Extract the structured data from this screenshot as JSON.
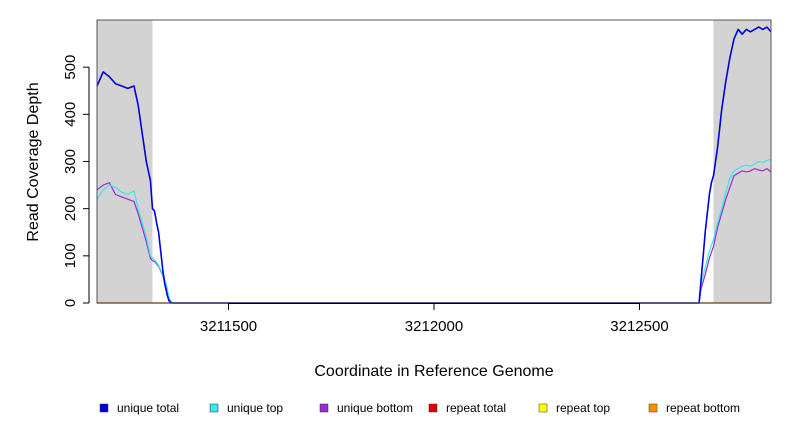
{
  "chart_data": {
    "type": "line",
    "title": "",
    "xlabel": "Coordinate in Reference Genome",
    "ylabel": "Read Coverage Depth",
    "xlim": [
      3211180,
      3212820
    ],
    "ylim": [
      0,
      600
    ],
    "x_ticks": [
      3211500,
      3212000,
      3212500
    ],
    "y_ticks": [
      0,
      100,
      200,
      300,
      400,
      500
    ],
    "shaded_regions": [
      [
        3211180,
        3211315
      ],
      [
        3212680,
        3212820
      ]
    ],
    "grid": false,
    "legend_position": "bottom",
    "series": [
      {
        "name": "unique total",
        "color": "#0000dd",
        "x": [
          3211180,
          3211195,
          3211210,
          3211225,
          3211240,
          3211255,
          3211270,
          3211280,
          3211290,
          3211300,
          3211310,
          3211315,
          3211320,
          3211325,
          3211330,
          3211335,
          3211340,
          3211345,
          3211350,
          3211355,
          3211360,
          3211365,
          3212645,
          3212650,
          3212655,
          3212660,
          3212665,
          3212670,
          3212675,
          3212680,
          3212690,
          3212700,
          3212710,
          3212720,
          3212730,
          3212740,
          3212750,
          3212760,
          3212770,
          3212780,
          3212790,
          3212800,
          3212810,
          3212820
        ],
        "y": [
          460,
          490,
          480,
          465,
          460,
          455,
          460,
          420,
          360,
          300,
          260,
          200,
          195,
          170,
          150,
          110,
          70,
          40,
          20,
          5,
          0,
          0,
          0,
          50,
          100,
          150,
          190,
          230,
          255,
          270,
          330,
          410,
          470,
          520,
          560,
          580,
          570,
          580,
          575,
          580,
          585,
          580,
          585,
          575
        ]
      },
      {
        "name": "unique top",
        "color": "#33e8e8",
        "x": [
          3211180,
          3211195,
          3211210,
          3211225,
          3211240,
          3211255,
          3211270,
          3211280,
          3211290,
          3211300,
          3211310,
          3211315,
          3211320,
          3211330,
          3211340,
          3211350,
          3211355,
          3211365,
          3212645,
          3212650,
          3212660,
          3212670,
          3212680,
          3212690,
          3212700,
          3212710,
          3212720,
          3212730,
          3212740,
          3212750,
          3212760,
          3212770,
          3212780,
          3212790,
          3212800,
          3212810,
          3212820
        ],
        "y": [
          220,
          240,
          250,
          245,
          235,
          230,
          238,
          200,
          170,
          140,
          100,
          95,
          92,
          80,
          60,
          35,
          10,
          0,
          0,
          40,
          75,
          110,
          135,
          170,
          200,
          235,
          265,
          280,
          285,
          290,
          292,
          290,
          295,
          300,
          298,
          302,
          305
        ]
      },
      {
        "name": "unique bottom",
        "color": "#9a2bd6",
        "x": [
          3211180,
          3211195,
          3211210,
          3211225,
          3211240,
          3211255,
          3211270,
          3211280,
          3211290,
          3211300,
          3211310,
          3211315,
          3211320,
          3211330,
          3211340,
          3211350,
          3211355,
          3211365,
          3212645,
          3212650,
          3212660,
          3212670,
          3212680,
          3212690,
          3212700,
          3212710,
          3212720,
          3212730,
          3212740,
          3212750,
          3212760,
          3212770,
          3212780,
          3212790,
          3212800,
          3212810,
          3212820
        ],
        "y": [
          240,
          250,
          255,
          230,
          225,
          220,
          215,
          190,
          160,
          130,
          95,
          90,
          88,
          78,
          58,
          30,
          8,
          0,
          0,
          30,
          60,
          95,
          120,
          160,
          190,
          220,
          245,
          270,
          275,
          280,
          278,
          280,
          285,
          282,
          280,
          285,
          278
        ]
      },
      {
        "name": "repeat total",
        "color": "#e00000",
        "x": [
          3211180,
          3212820
        ],
        "y": [
          0,
          0
        ]
      },
      {
        "name": "repeat top",
        "color": "#ffff00",
        "x": [
          3211180,
          3212820
        ],
        "y": [
          0,
          0
        ]
      },
      {
        "name": "repeat bottom",
        "color": "#ff8c00",
        "x": [
          3211180,
          3212820
        ],
        "y": [
          0,
          0
        ]
      }
    ]
  }
}
